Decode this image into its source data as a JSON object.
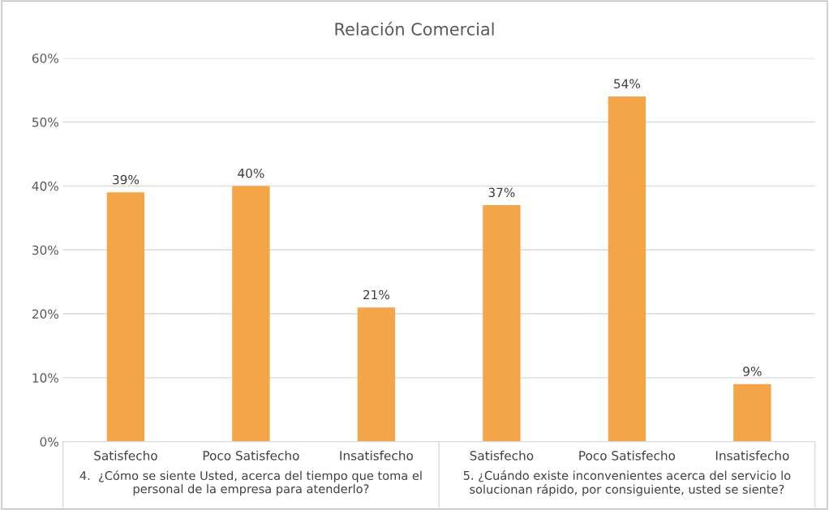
{
  "chart_data": {
    "type": "bar",
    "title": "Relación Comercial",
    "categories": [
      "Satisfecho",
      "Poco Satisfecho",
      "Insatisfecho",
      "Satisfecho",
      "Poco Satisfecho",
      "Insatisfecho"
    ],
    "values": [
      39,
      40,
      21,
      37,
      54,
      9
    ],
    "value_labels": [
      "39%",
      "40%",
      "21%",
      "37%",
      "54%",
      "9%"
    ],
    "color": "#f4a548",
    "ylim": [
      0,
      60
    ],
    "yticks": [
      {
        "value": 0,
        "label": "0%"
      },
      {
        "value": 10,
        "label": "10%"
      },
      {
        "value": 20,
        "label": "20%"
      },
      {
        "value": 30,
        "label": "30%"
      },
      {
        "value": 40,
        "label": "40%"
      },
      {
        "value": 50,
        "label": "50%"
      },
      {
        "value": 60,
        "label": "60%"
      }
    ],
    "grid": "y",
    "legend": false,
    "annotations": [
      "4.  ¿Cómo se siente Usted, acerca del tiempo que toma el personal de la empresa para atenderlo?",
      "5. ¿Cuándo existe inconvenientes acerca del servicio lo solucionan rápido, por consiguiente, usted se siente?"
    ]
  }
}
